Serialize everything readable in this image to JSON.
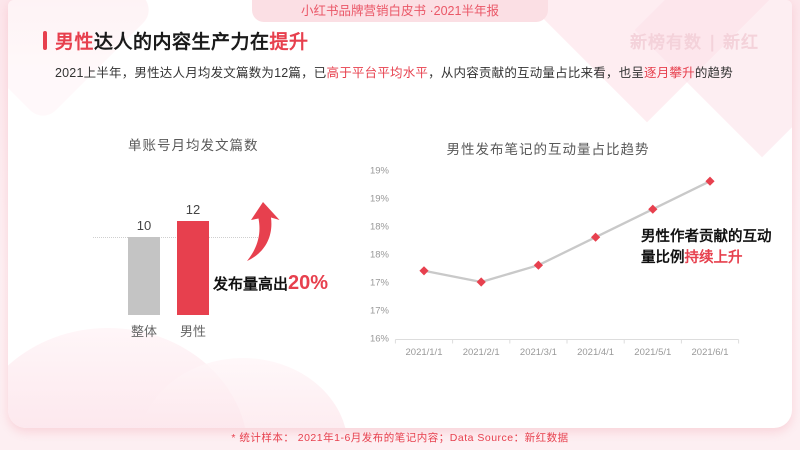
{
  "page": {
    "badge": "小红书品牌营销白皮书 ·2021半年报",
    "watermark": "新榜有数 ∣ 新红",
    "title": {
      "red1": "男性",
      "mid": "达人的内容生产力在",
      "red2": "提升"
    },
    "subtitle": {
      "p1": "2021上半年，男性达人月均发文篇数为12篇，已",
      "r1": "高于平台平均水平",
      "p2": "，从内容贡献的互动量占比来看，也呈",
      "r2": "逐月攀升",
      "p3": "的趋势"
    },
    "footer": "* 统计样本： 2021年1-6月发布的笔记内容；Data Source：新红数据"
  },
  "colors": {
    "accent": "#e7404e",
    "bar_gray": "#c4c4c4",
    "line_gray": "#c9c9c9",
    "axis_text": "#999999"
  },
  "chart_data": [
    {
      "type": "bar",
      "title": "单账号月均发文篇数",
      "categories": [
        "整体",
        "男性"
      ],
      "values": [
        10,
        12
      ],
      "bar_colors": [
        "#c4c4c4",
        "#e7404e"
      ],
      "reference_line_value": 10,
      "annotation": {
        "text_black": "发布量高出",
        "text_red": "20%"
      }
    },
    {
      "type": "line",
      "title": "男性发布笔记的互动量占比趋势",
      "x": [
        "2021/1/1",
        "2021/2/1",
        "2021/3/1",
        "2021/4/1",
        "2021/5/1",
        "2021/6/1"
      ],
      "values": [
        17.2,
        17.0,
        17.3,
        17.8,
        18.3,
        18.8
      ],
      "unit": "%",
      "ylim": [
        16,
        19
      ],
      "ytick_step": 0.5,
      "ytick_labels": [
        "19%",
        "19%",
        "18%",
        "18%",
        "17%",
        "17%",
        "16%"
      ],
      "grid": false,
      "marker": "diamond",
      "annotation": {
        "line1": "男性作者贡献的互动",
        "line2_black": "量比例",
        "line2_red": "持续上升"
      }
    }
  ]
}
